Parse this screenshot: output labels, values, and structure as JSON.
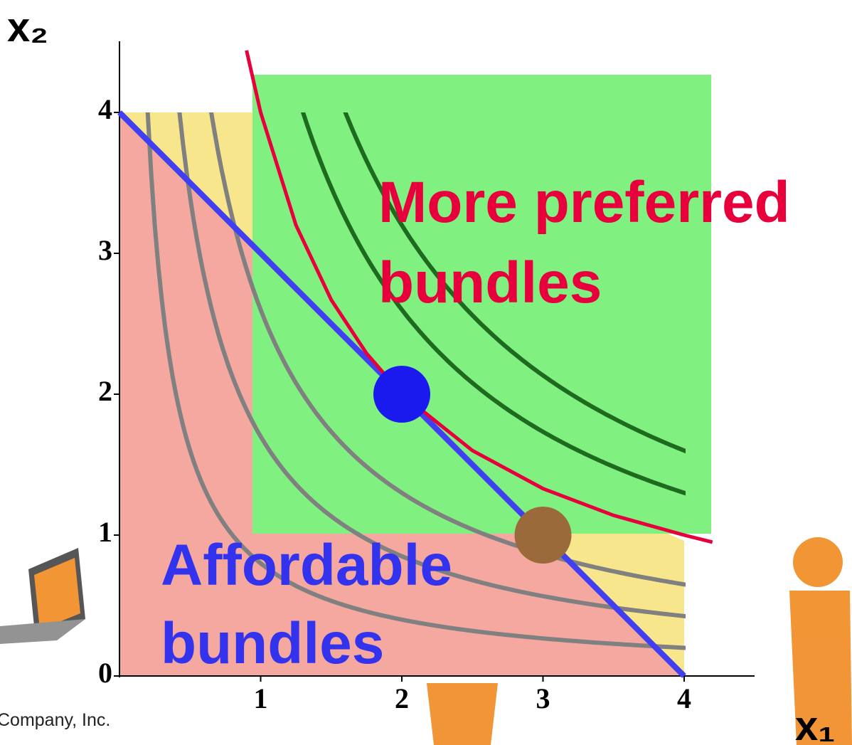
{
  "chart_data": {
    "type": "line",
    "xlabel": "x₁",
    "ylabel": "x₂",
    "xlim": [
      0,
      4.5
    ],
    "ylim": [
      0,
      4.5
    ],
    "xticks": [
      1,
      2,
      3,
      4
    ],
    "yticks": [
      0,
      1,
      2,
      3,
      4
    ],
    "series": [
      {
        "color": "#4040f0",
        "x": [
          0,
          4
        ],
        "values": [
          4,
          0
        ]
      },
      {
        "color": "#e8003c",
        "x": [
          0.9,
          1,
          1.25,
          1.5,
          1.75,
          2,
          2.5,
          3,
          3.5,
          4,
          4.2
        ],
        "values": [
          4.44,
          4,
          3.2,
          2.67,
          2.29,
          2,
          1.6,
          1.33,
          1.14,
          1,
          0.95
        ]
      }
    ],
    "contours": [
      {
        "level": 0.8,
        "color": "#808080"
      },
      {
        "level": 1.7,
        "color": "#808080"
      },
      {
        "level": 2.6,
        "color": "#808080"
      },
      {
        "level": 5.2,
        "color": "#1e6a1e"
      },
      {
        "level": 6.4,
        "color": "#1e6a1e"
      }
    ],
    "points": {
      "x": [
        2,
        3
      ],
      "values": [
        2,
        1
      ],
      "colors": [
        "#1a1aee",
        "#9b6a3a"
      ]
    },
    "annotations": [
      "More preferred",
      "bundles",
      "Affordable",
      "bundles",
      "Company, Inc."
    ]
  }
}
